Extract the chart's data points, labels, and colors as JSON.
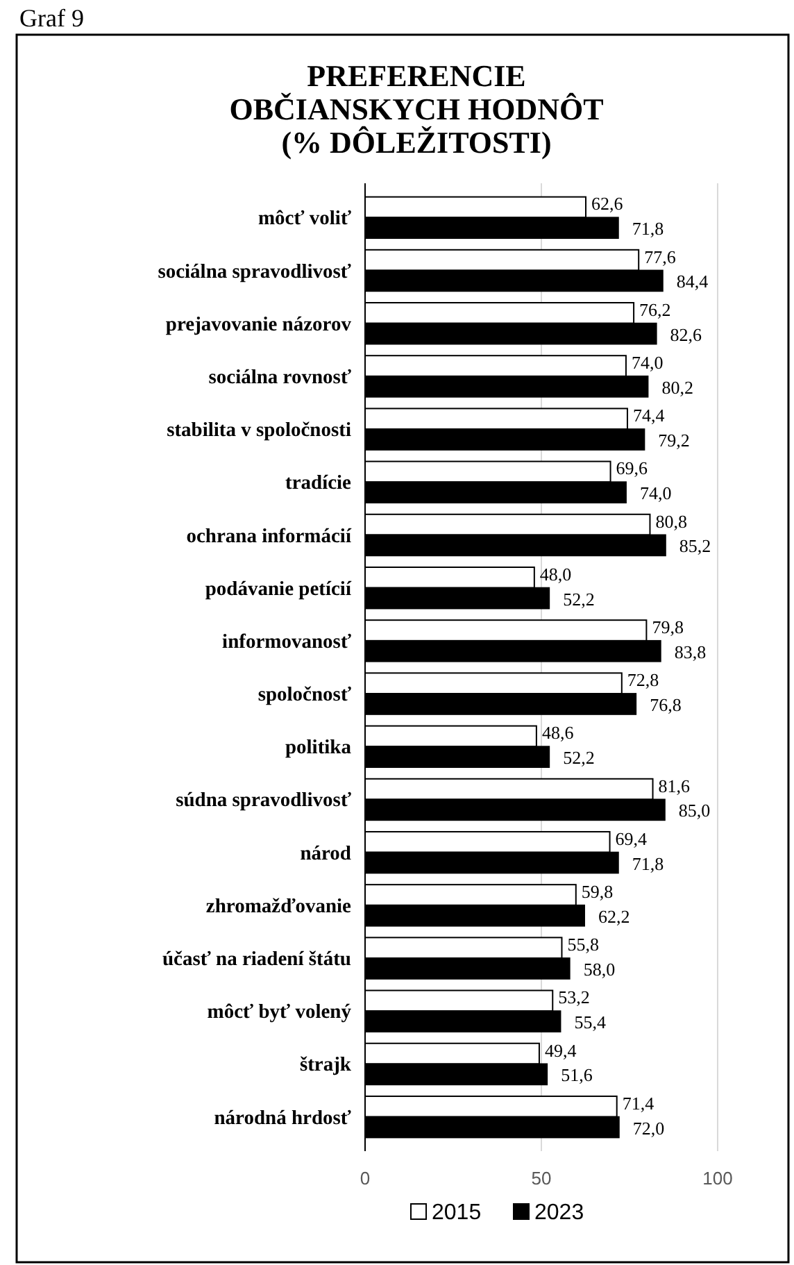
{
  "chart_data": {
    "type": "bar",
    "orientation": "horizontal",
    "title": "PREFERENCIE\nOBČIANSKYCH HODNÔT\n(% DÔLEŽITOSTI)",
    "annotations": [
      "Graf 9"
    ],
    "categories": [
      "môcť voliť",
      "sociálna spravodlivosť",
      "prejavovanie názorov",
      "sociálna rovnosť",
      "stabilita v spoločnosti",
      "tradície",
      "ochrana informácií",
      "podávanie petícií",
      "informovanosť",
      "spoločnosť",
      "politika",
      "súdna spravodlivosť",
      "národ",
      "zhromažďovanie",
      "účasť na riadení štátu",
      "môcť byť volený",
      "štrajk",
      "národná hrdosť"
    ],
    "series": [
      {
        "name": "2015",
        "color": "#ffffff",
        "values": [
          62.6,
          77.6,
          76.2,
          74.0,
          74.4,
          69.6,
          80.8,
          48.0,
          79.8,
          72.8,
          48.6,
          81.6,
          69.4,
          59.8,
          55.8,
          53.2,
          49.4,
          71.4
        ],
        "value_labels": [
          "62,6",
          "77,6",
          "76,2",
          "74,0",
          "74,4",
          "69,6",
          "80,8",
          "48,0",
          "79,8",
          "72,8",
          "48,6",
          "81,6",
          "69,4",
          "59,8",
          "55,8",
          "53,2",
          "49,4",
          "71,4"
        ]
      },
      {
        "name": "2023",
        "color": "#000000",
        "values": [
          71.8,
          84.4,
          82.6,
          80.2,
          79.2,
          74.0,
          85.2,
          52.2,
          83.8,
          76.8,
          52.2,
          85.0,
          71.8,
          62.2,
          58.0,
          55.4,
          51.6,
          72.0
        ],
        "value_labels": [
          "71,8",
          "84,4",
          "82,6",
          "80,2",
          "79,2",
          "74,0",
          "85,2",
          "52,2",
          "83,8",
          "76,8",
          "52,2",
          "85,0",
          "71,8",
          "62,2",
          "58,0",
          "55,4",
          "51,6",
          "72,0"
        ]
      }
    ],
    "xlim": [
      0,
      100
    ],
    "xticks": [
      0,
      50,
      100
    ],
    "grid": "x",
    "legend": "bottom"
  }
}
